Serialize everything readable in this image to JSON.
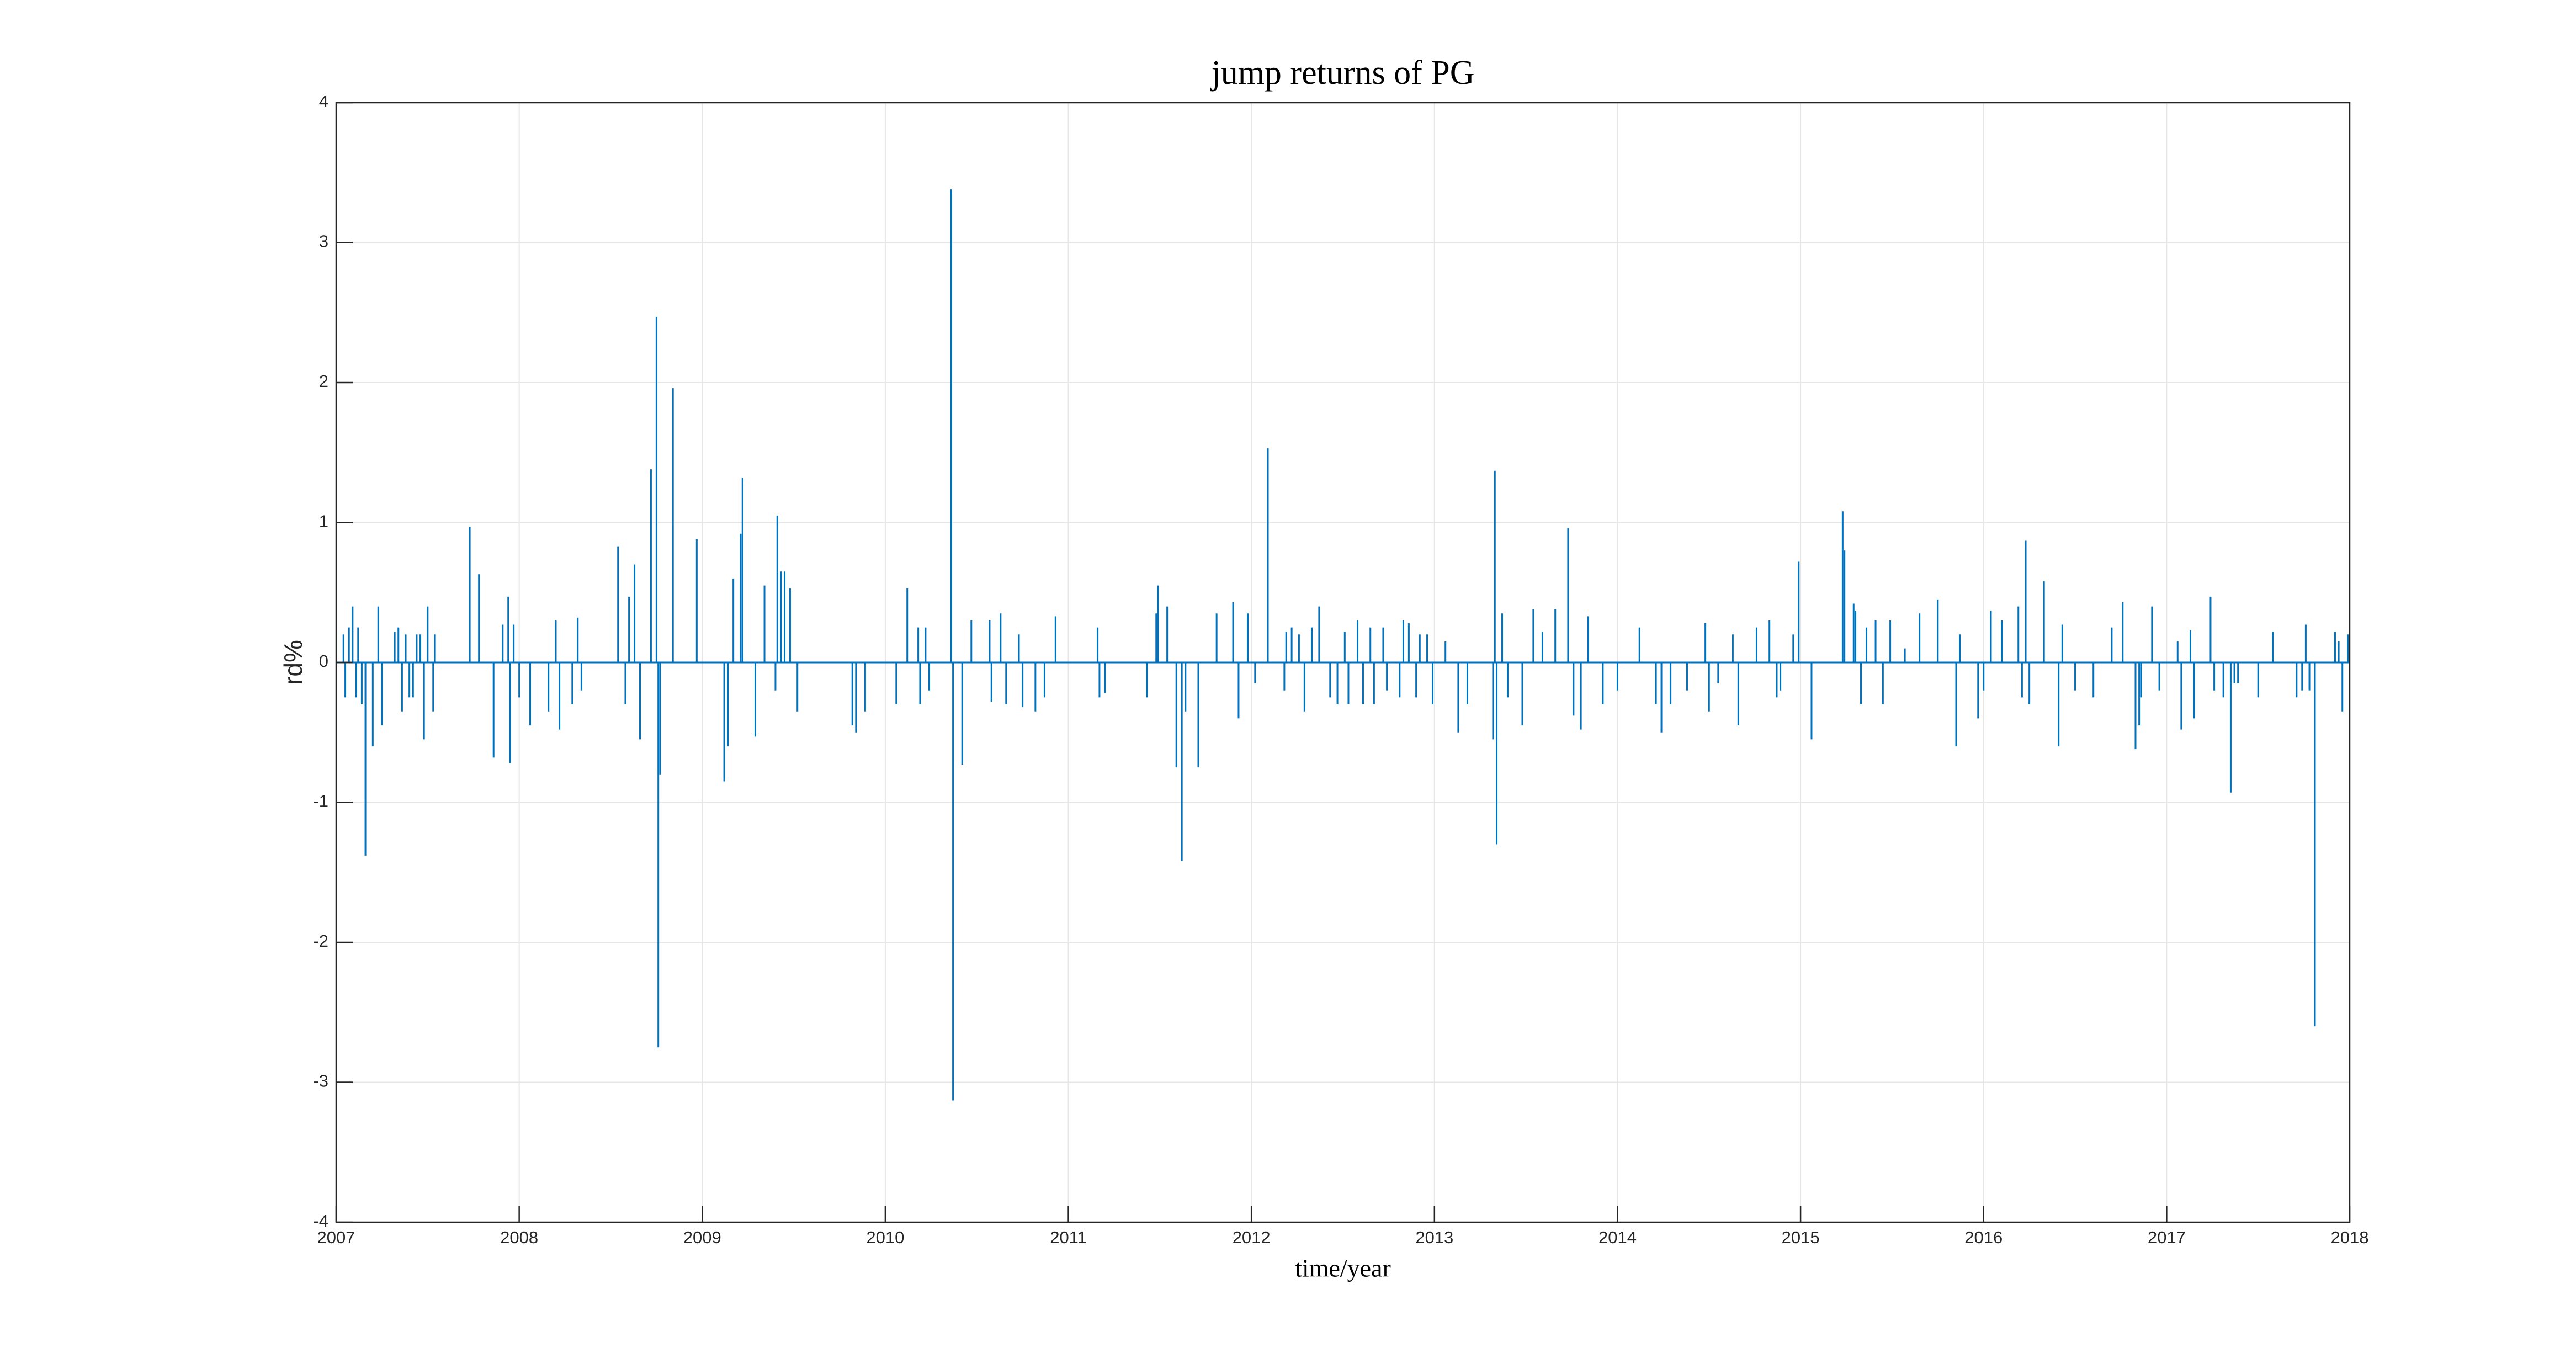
{
  "chart_data": {
    "type": "spike",
    "title": "jump returns of PG",
    "xlabel": "time/year",
    "ylabel": "rd%",
    "color": "#0072bd",
    "grid": true,
    "xlim": [
      2007,
      2018
    ],
    "xticks": [
      2007,
      2008,
      2009,
      2010,
      2011,
      2012,
      2013,
      2014,
      2015,
      2016,
      2017,
      2018
    ],
    "ylim": [
      -4,
      4
    ],
    "yticks": [
      -4,
      -3,
      -2,
      -1,
      0,
      1,
      2,
      3,
      4
    ],
    "x": [
      2007.04,
      2007.05,
      2007.07,
      2007.09,
      2007.11,
      2007.12,
      2007.14,
      2007.16,
      2007.2,
      2007.23,
      2007.25,
      2007.32,
      2007.34,
      2007.36,
      2007.38,
      2007.4,
      2007.42,
      2007.44,
      2007.46,
      2007.48,
      2007.5,
      2007.53,
      2007.54,
      2007.73,
      2007.78,
      2007.86,
      2007.91,
      2007.94,
      2007.95,
      2007.97,
      2008.0,
      2008.06,
      2008.16,
      2008.2,
      2008.22,
      2008.29,
      2008.32,
      2008.34,
      2008.54,
      2008.58,
      2008.6,
      2008.63,
      2008.66,
      2008.72,
      2008.75,
      2008.76,
      2008.77,
      2008.84,
      2008.97,
      2009.12,
      2009.14,
      2009.17,
      2009.21,
      2009.22,
      2009.29,
      2009.34,
      2009.4,
      2009.41,
      2009.43,
      2009.45,
      2009.48,
      2009.52,
      2009.82,
      2009.84,
      2009.89,
      2010.06,
      2010.12,
      2010.18,
      2010.19,
      2010.22,
      2010.24,
      2010.36,
      2010.37,
      2010.42,
      2010.47,
      2010.57,
      2010.58,
      2010.63,
      2010.66,
      2010.73,
      2010.75,
      2010.82,
      2010.87,
      2010.93,
      2011.16,
      2011.17,
      2011.2,
      2011.43,
      2011.48,
      2011.49,
      2011.54,
      2011.59,
      2011.62,
      2011.64,
      2011.71,
      2011.81,
      2011.9,
      2011.93,
      2011.98,
      2012.02,
      2012.09,
      2012.18,
      2012.19,
      2012.22,
      2012.26,
      2012.29,
      2012.33,
      2012.37,
      2012.43,
      2012.47,
      2012.51,
      2012.53,
      2012.58,
      2012.61,
      2012.65,
      2012.67,
      2012.72,
      2012.74,
      2012.81,
      2012.83,
      2012.86,
      2012.9,
      2012.92,
      2012.96,
      2012.99,
      2013.06,
      2013.13,
      2013.18,
      2013.32,
      2013.33,
      2013.34,
      2013.37,
      2013.4,
      2013.48,
      2013.54,
      2013.59,
      2013.66,
      2013.73,
      2013.76,
      2013.8,
      2013.84,
      2013.92,
      2014.0,
      2014.12,
      2014.21,
      2014.24,
      2014.29,
      2014.38,
      2014.48,
      2014.5,
      2014.55,
      2014.63,
      2014.66,
      2014.76,
      2014.83,
      2014.87,
      2014.89,
      2014.96,
      2014.99,
      2015.06,
      2015.23,
      2015.24,
      2015.29,
      2015.3,
      2015.33,
      2015.36,
      2015.41,
      2015.45,
      2015.49,
      2015.57,
      2015.65,
      2015.75,
      2015.85,
      2015.87,
      2015.97,
      2016.0,
      2016.04,
      2016.1,
      2016.19,
      2016.21,
      2016.23,
      2016.25,
      2016.33,
      2016.41,
      2016.43,
      2016.5,
      2016.6,
      2016.7,
      2016.76,
      2016.83,
      2016.85,
      2016.86,
      2016.92,
      2016.96,
      2017.06,
      2017.08,
      2017.13,
      2017.15,
      2017.24,
      2017.26,
      2017.31,
      2017.35,
      2017.37,
      2017.39,
      2017.5,
      2017.58,
      2017.71,
      2017.74,
      2017.76,
      2017.78,
      2017.81,
      2017.92,
      2017.94,
      2017.96,
      2017.99
    ],
    "values": [
      0.2,
      -0.25,
      0.25,
      0.4,
      -0.25,
      0.25,
      -0.3,
      -1.38,
      -0.6,
      0.4,
      -0.45,
      0.22,
      0.25,
      -0.35,
      0.2,
      -0.25,
      -0.25,
      0.2,
      0.2,
      -0.55,
      0.4,
      -0.35,
      0.2,
      0.97,
      0.63,
      -0.68,
      0.27,
      0.47,
      -0.72,
      0.27,
      -0.25,
      -0.45,
      -0.35,
      0.3,
      -0.48,
      -0.3,
      0.32,
      -0.2,
      0.83,
      -0.3,
      0.47,
      0.7,
      -0.55,
      1.38,
      2.47,
      -2.75,
      -0.8,
      1.96,
      0.88,
      -0.85,
      -0.6,
      0.6,
      0.92,
      1.32,
      -0.53,
      0.55,
      -0.2,
      1.05,
      0.65,
      0.65,
      0.53,
      -0.35,
      -0.45,
      -0.5,
      -0.35,
      -0.3,
      0.53,
      0.25,
      -0.3,
      0.25,
      -0.2,
      3.38,
      -3.13,
      -0.73,
      0.3,
      0.3,
      -0.28,
      0.35,
      -0.3,
      0.2,
      -0.32,
      -0.35,
      -0.25,
      0.33,
      0.25,
      -0.25,
      -0.22,
      -0.25,
      0.35,
      0.55,
      0.4,
      -0.75,
      -1.42,
      -0.35,
      -0.75,
      0.35,
      0.43,
      -0.4,
      0.35,
      -0.15,
      1.53,
      -0.2,
      0.22,
      0.25,
      0.2,
      -0.35,
      0.25,
      0.4,
      -0.25,
      -0.3,
      0.22,
      -0.3,
      0.3,
      -0.3,
      0.25,
      -0.3,
      0.25,
      -0.2,
      -0.25,
      0.3,
      0.28,
      -0.25,
      0.2,
      0.2,
      -0.3,
      0.15,
      -0.5,
      -0.3,
      -0.55,
      1.37,
      -1.3,
      0.35,
      -0.25,
      -0.45,
      0.38,
      0.22,
      0.38,
      0.96,
      -0.38,
      -0.48,
      0.33,
      -0.3,
      -0.2,
      0.25,
      -0.3,
      -0.5,
      -0.3,
      -0.2,
      0.28,
      -0.35,
      -0.15,
      0.2,
      -0.45,
      0.25,
      0.3,
      -0.25,
      -0.2,
      0.2,
      0.72,
      -0.55,
      1.08,
      0.8,
      0.42,
      0.37,
      -0.3,
      0.25,
      0.3,
      -0.3,
      0.3,
      0.1,
      0.35,
      0.45,
      -0.6,
      0.2,
      -0.4,
      -0.2,
      0.37,
      0.3,
      0.4,
      -0.25,
      0.87,
      -0.3,
      0.58,
      -0.6,
      0.27,
      -0.2,
      -0.25,
      0.25,
      0.43,
      -0.62,
      -0.45,
      -0.25,
      0.4,
      -0.2,
      0.15,
      -0.48,
      0.23,
      -0.4,
      0.47,
      -0.2,
      -0.25,
      -0.93,
      -0.15,
      -0.15,
      -0.25,
      0.22,
      -0.25,
      -0.2,
      0.27,
      -0.2,
      -2.6,
      0.22,
      0.15,
      -0.35,
      0.2
    ]
  }
}
